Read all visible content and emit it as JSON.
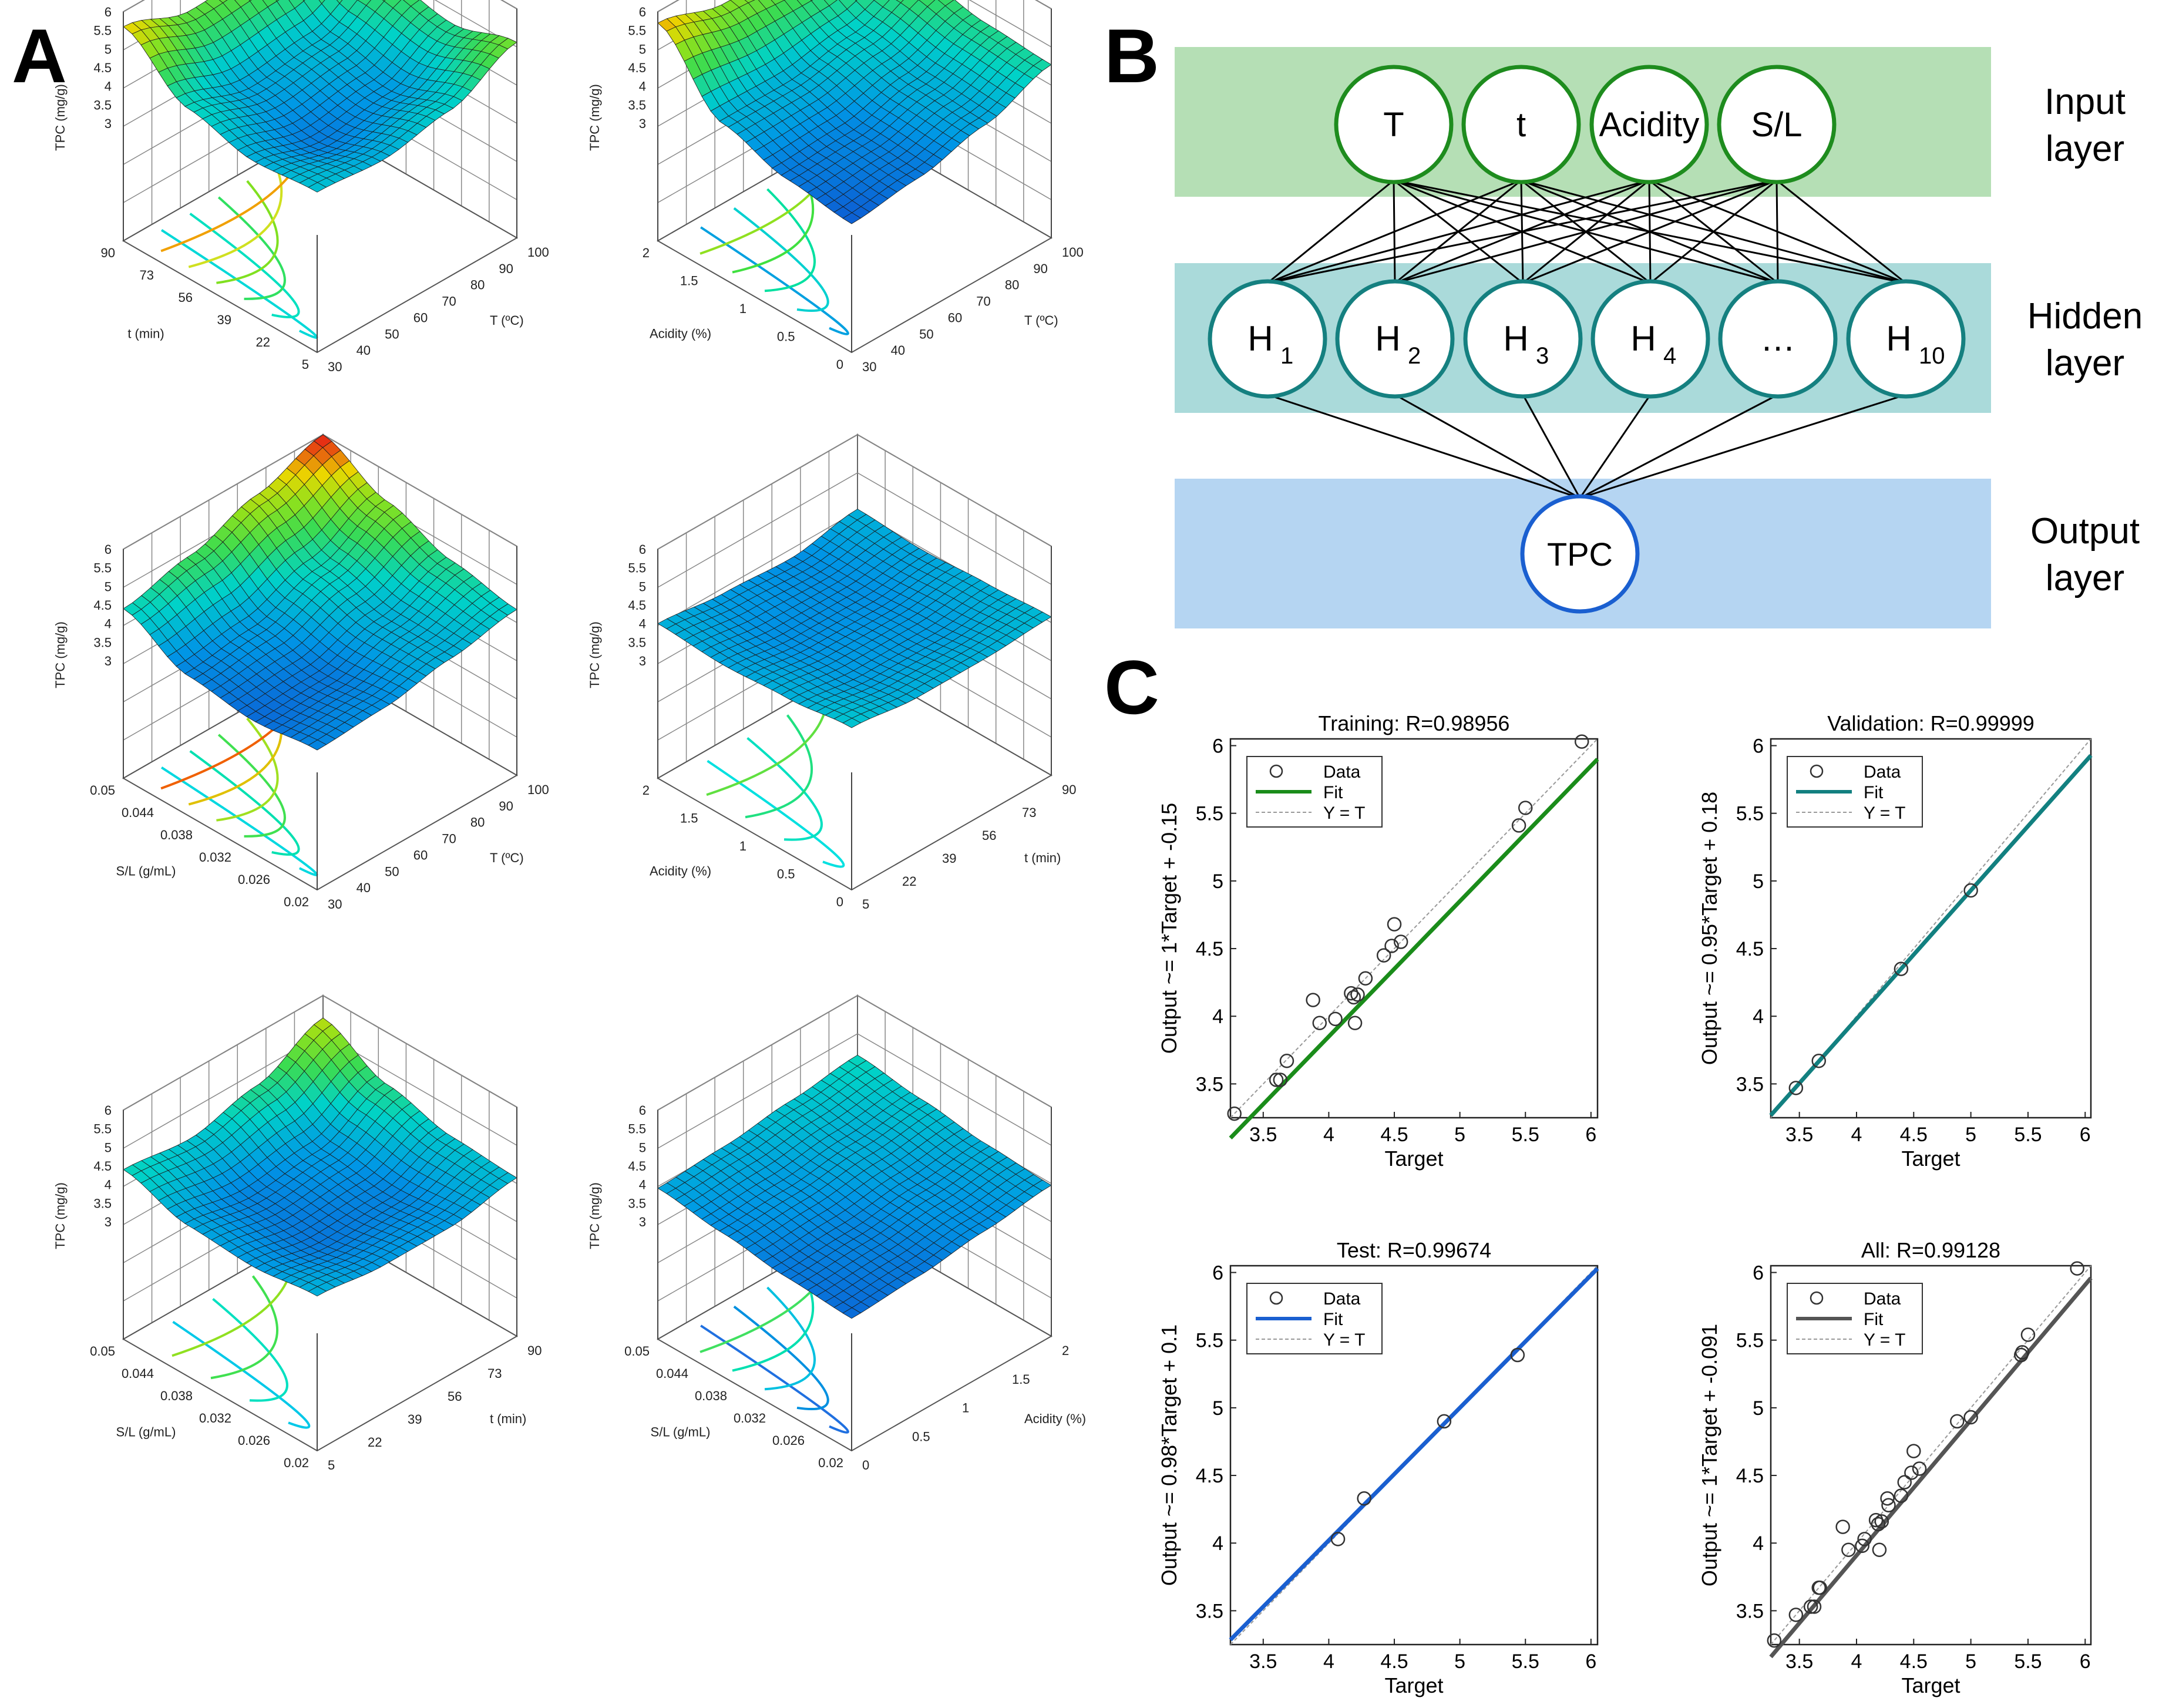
{
  "panel_labels": {
    "a": "A",
    "b": "B",
    "c": "C"
  },
  "surfaces": [
    {
      "id": "s1",
      "zlabel": "TPC (mg/g)",
      "zticks": [
        "6",
        "5.5",
        "5",
        "4.5",
        "4",
        "3.5",
        "3"
      ],
      "xlabel": "T (ºC)",
      "xticks": [
        "30",
        "40",
        "50",
        "60",
        "70",
        "80",
        "90",
        "100"
      ],
      "ylabel": "t (min)",
      "yticks": [
        "5",
        "22",
        "39",
        "56",
        "73",
        "90"
      ],
      "surface_z": [
        [
          4.15,
          4.0,
          4.3,
          5.1
        ],
        [
          4.0,
          3.55,
          3.8,
          4.6
        ],
        [
          4.4,
          3.9,
          4.1,
          4.9
        ],
        [
          5.6,
          5.0,
          5.1,
          5.7
        ]
      ],
      "contour_colors": [
        "#00d8d8",
        "#00e0c0",
        "#30e060",
        "#80e020",
        "#d0e020",
        "#f0a000"
      ]
    },
    {
      "id": "s2",
      "zlabel": "TPC (mg/g)",
      "zticks": [
        "6",
        "5.5",
        "5",
        "4.5",
        "4",
        "3.5",
        "3"
      ],
      "xlabel": "T (ºC)",
      "xticks": [
        "30",
        "40",
        "50",
        "60",
        "70",
        "80",
        "90",
        "100"
      ],
      "ylabel": "Acidity (%)",
      "yticks": [
        "0",
        "0.5",
        "1",
        "1.5",
        "2"
      ],
      "surface_z": [
        [
          3.3,
          3.5,
          3.9,
          4.5
        ],
        [
          3.5,
          3.6,
          4.0,
          4.6
        ],
        [
          4.0,
          4.0,
          4.3,
          4.9
        ],
        [
          5.7,
          5.2,
          5.0,
          5.3
        ]
      ],
      "contour_colors": [
        "#00a0e0",
        "#00d0d0",
        "#00e0a0",
        "#40e040",
        "#90e020"
      ]
    },
    {
      "id": "s3",
      "zlabel": "TPC (mg/g)",
      "zticks": [
        "6",
        "5.5",
        "5",
        "4.5",
        "4",
        "3.5",
        "3"
      ],
      "xlabel": "T (ºC)",
      "xticks": [
        "30",
        "40",
        "50",
        "60",
        "70",
        "80",
        "90",
        "100"
      ],
      "ylabel": "S/L (g/mL)",
      "yticks": [
        "0.02",
        "0.026",
        "0.032",
        "0.038",
        "0.044",
        "0.05"
      ],
      "surface_z": [
        [
          3.6,
          3.7,
          4.0,
          4.3
        ],
        [
          3.4,
          3.5,
          4.0,
          4.6
        ],
        [
          3.6,
          3.8,
          4.4,
          5.2
        ],
        [
          4.4,
          4.8,
          5.4,
          6.0
        ]
      ],
      "contour_colors": [
        "#00d8e0",
        "#00e0b0",
        "#40e050",
        "#a0e020",
        "#e0c000",
        "#f06000"
      ]
    },
    {
      "id": "s4",
      "zlabel": "TPC (mg/g)",
      "zticks": [
        "6",
        "5.5",
        "5",
        "4.5",
        "4",
        "3.5",
        "3"
      ],
      "xlabel": "t (min)",
      "xticks": [
        "5",
        "22",
        "39",
        "56",
        "73",
        "90"
      ],
      "ylabel": "Acidity (%)",
      "yticks": [
        "0",
        "0.5",
        "1",
        "1.5",
        "2"
      ],
      "surface_z": [
        [
          4.2,
          4.0,
          4.0,
          4.1
        ],
        [
          4.0,
          3.8,
          3.8,
          4.0
        ],
        [
          3.9,
          3.7,
          3.7,
          3.9
        ],
        [
          4.0,
          3.8,
          3.7,
          4.0
        ]
      ],
      "contour_colors": [
        "#00e0e0",
        "#00e0c0",
        "#20e080",
        "#60e040"
      ]
    },
    {
      "id": "s5",
      "zlabel": "TPC (mg/g)",
      "zticks": [
        "6",
        "5.5",
        "5",
        "4.5",
        "4",
        "3.5",
        "3"
      ],
      "xlabel": "t (min)",
      "xticks": [
        "5",
        "22",
        "39",
        "56",
        "73",
        "90"
      ],
      "ylabel": "S/L (g/mL)",
      "yticks": [
        "0.02",
        "0.026",
        "0.032",
        "0.038",
        "0.044",
        "0.05"
      ],
      "surface_z": [
        [
          4.0,
          3.8,
          3.8,
          4.1
        ],
        [
          3.8,
          3.5,
          3.6,
          4.2
        ],
        [
          3.9,
          3.6,
          3.8,
          4.6
        ],
        [
          4.4,
          4.2,
          4.6,
          5.4
        ]
      ],
      "contour_colors": [
        "#00c8e8",
        "#00e0c0",
        "#40e050",
        "#90e020"
      ]
    },
    {
      "id": "s6",
      "zlabel": "TPC (mg/g)",
      "zticks": [
        "6",
        "5.5",
        "5",
        "4.5",
        "4",
        "3.5",
        "3"
      ],
      "xlabel": "Acidity (%)",
      "xticks": [
        "0",
        "0.5",
        "1",
        "1.5",
        "2"
      ],
      "ylabel": "S/L (g/mL)",
      "yticks": [
        "0.02",
        "0.026",
        "0.032",
        "0.038",
        "0.044",
        "0.05"
      ],
      "surface_z": [
        [
          3.4,
          3.5,
          3.7,
          3.9
        ],
        [
          3.5,
          3.6,
          3.8,
          4.0
        ],
        [
          3.7,
          3.8,
          4.0,
          4.2
        ],
        [
          3.9,
          4.0,
          4.2,
          4.4
        ]
      ],
      "contour_colors": [
        "#2070e0",
        "#0090e0",
        "#00c0e0",
        "#00e0b0",
        "#40e060"
      ]
    }
  ],
  "network": {
    "layer_labels": {
      "input": [
        "Input",
        "layer"
      ],
      "hidden": [
        "Hidden",
        "layer"
      ],
      "output": [
        "Output",
        "layer"
      ]
    },
    "input_nodes": [
      "T",
      "t",
      "Acidity",
      "S/L"
    ],
    "hidden_nodes": [
      {
        "base": "H",
        "sub": "1"
      },
      {
        "base": "H",
        "sub": "2"
      },
      {
        "base": "H",
        "sub": "3"
      },
      {
        "base": "H",
        "sub": "4"
      },
      {
        "base": "…",
        "sub": ""
      },
      {
        "base": "H",
        "sub": "10"
      }
    ],
    "output_nodes": [
      "TPC"
    ],
    "colors": {
      "input_band": "#b5dfb5",
      "hidden_band": "#aadada",
      "output_band": "#b5d5f2",
      "input_ring": "#1e8c1e",
      "hidden_ring": "#158080",
      "output_ring": "#1a5fd0"
    }
  },
  "chart_data": [
    {
      "type": "scatter",
      "title": "Training: R=0.98956",
      "xlabel": "Target",
      "ylabel": "Output ~= 1*Target + -0.15",
      "xlim": [
        3.25,
        6.05
      ],
      "ylim": [
        3.25,
        6.05
      ],
      "xticks": [
        "3.5",
        "4",
        "4.5",
        "5",
        "5.5",
        "6"
      ],
      "yticks": [
        "3.5",
        "4",
        "4.5",
        "5",
        "5.5",
        "6"
      ],
      "x": [
        3.28,
        3.6,
        3.63,
        3.68,
        3.88,
        3.93,
        4.05,
        4.17,
        4.19,
        4.2,
        4.22,
        4.28,
        4.42,
        4.48,
        4.5,
        4.55,
        5.45,
        5.5,
        5.93
      ],
      "y": [
        3.28,
        3.53,
        3.53,
        3.67,
        4.12,
        3.95,
        3.98,
        4.17,
        4.14,
        3.95,
        4.16,
        4.28,
        4.45,
        4.52,
        4.68,
        4.55,
        5.41,
        5.54,
        6.03
      ],
      "fit": {
        "slope": 1.0,
        "intercept": -0.15,
        "color": "#1a8c1a"
      },
      "legend": [
        "Data",
        "Fit",
        "Y = T"
      ]
    },
    {
      "type": "scatter",
      "title": "Validation: R=0.99999",
      "xlabel": "Target",
      "ylabel": "Output ~= 0.95*Target + 0.18",
      "xlim": [
        3.25,
        6.05
      ],
      "ylim": [
        3.25,
        6.05
      ],
      "xticks": [
        "3.5",
        "4",
        "4.5",
        "5",
        "5.5",
        "6"
      ],
      "yticks": [
        "3.5",
        "4",
        "4.5",
        "5",
        "5.5",
        "6"
      ],
      "x": [
        3.47,
        3.67,
        4.39,
        5.0
      ],
      "y": [
        3.47,
        3.67,
        4.35,
        4.93
      ],
      "fit": {
        "slope": 0.95,
        "intercept": 0.18,
        "color": "#128080"
      },
      "legend": [
        "Data",
        "Fit",
        "Y = T"
      ]
    },
    {
      "type": "scatter",
      "title": "Test: R=0.99674",
      "xlabel": "Target",
      "ylabel": "Output ~= 0.98*Target + 0.1",
      "xlim": [
        3.25,
        6.05
      ],
      "ylim": [
        3.25,
        6.05
      ],
      "xticks": [
        "3.5",
        "4",
        "4.5",
        "5",
        "5.5",
        "6"
      ],
      "yticks": [
        "3.5",
        "4",
        "4.5",
        "5",
        "5.5",
        "6"
      ],
      "x": [
        4.07,
        4.27,
        4.88,
        5.44
      ],
      "y": [
        4.03,
        4.33,
        4.9,
        5.39
      ],
      "fit": {
        "slope": 0.98,
        "intercept": 0.1,
        "color": "#1a5fd0"
      },
      "legend": [
        "Data",
        "Fit",
        "Y = T"
      ]
    },
    {
      "type": "scatter",
      "title": "All: R=0.99128",
      "xlabel": "Target",
      "ylabel": "Output ~= 1*Target + -0.091",
      "xlim": [
        3.25,
        6.05
      ],
      "ylim": [
        3.25,
        6.05
      ],
      "xticks": [
        "3.5",
        "4",
        "4.5",
        "5",
        "5.5",
        "6"
      ],
      "yticks": [
        "3.5",
        "4",
        "4.5",
        "5",
        "5.5",
        "6"
      ],
      "x": [
        3.28,
        3.47,
        3.6,
        3.63,
        3.67,
        3.68,
        3.88,
        3.93,
        4.05,
        4.07,
        4.17,
        4.19,
        4.2,
        4.22,
        4.27,
        4.28,
        4.39,
        4.42,
        4.48,
        4.5,
        4.55,
        4.88,
        5.0,
        5.44,
        5.45,
        5.5,
        5.93
      ],
      "y": [
        3.28,
        3.47,
        3.53,
        3.53,
        3.67,
        3.67,
        4.12,
        3.95,
        3.98,
        4.03,
        4.17,
        4.14,
        3.95,
        4.16,
        4.33,
        4.28,
        4.35,
        4.45,
        4.52,
        4.68,
        4.55,
        4.9,
        4.93,
        5.39,
        5.41,
        5.54,
        6.03
      ],
      "fit": {
        "slope": 1.0,
        "intercept": -0.091,
        "color": "#555555"
      },
      "legend": [
        "Data",
        "Fit",
        "Y = T"
      ]
    }
  ]
}
